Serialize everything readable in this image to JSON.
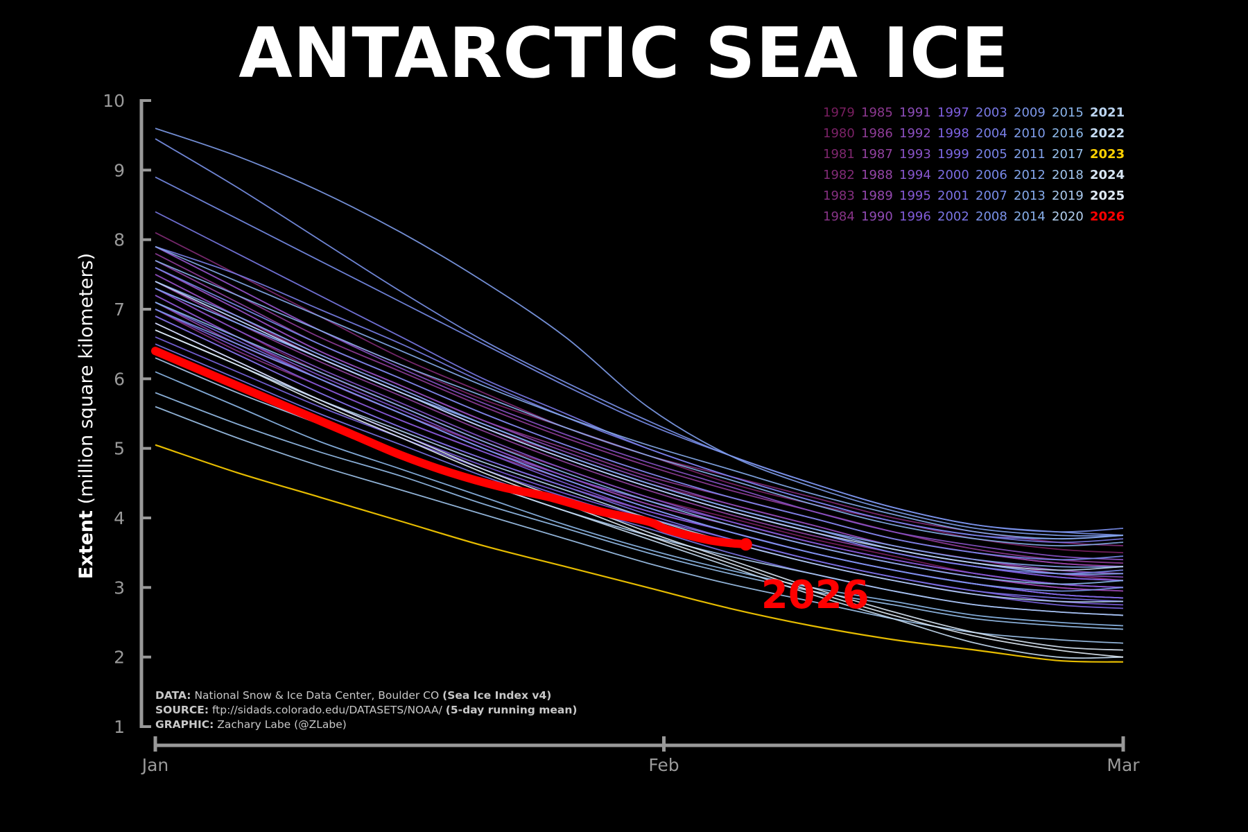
{
  "title": "ANTARCTIC SEA ICE",
  "credits": {
    "data_label": "DATA:",
    "data_text": "National Snow & Ice Data Center, Boulder CO",
    "data_bold": "(Sea Ice Index v4)",
    "source_label": "SOURCE:",
    "source_text": "ftp://sidads.colorado.edu/DATASETS/NOAA/",
    "source_bold": "(5-day running mean)",
    "graphic_label": "GRAPHIC:",
    "graphic_text": "Zachary Labe (@ZLabe)"
  },
  "chart_data": {
    "type": "line",
    "ylabel_bold": "Extent",
    "ylabel_rest": "(million square kilometers)",
    "ylim": [
      1,
      10
    ],
    "yticks": [
      "1",
      "2",
      "3",
      "4",
      "5",
      "6",
      "7",
      "8",
      "9",
      "10"
    ],
    "xticks": [
      "Jan",
      "Feb",
      "Mar"
    ],
    "x_unit": "day of year (Jan 1 = 0, Feb 1 = 31, Mar 1 = 59)",
    "x": [
      0,
      5,
      10,
      15,
      20,
      25,
      30,
      35,
      40,
      45,
      50,
      55,
      59
    ],
    "highlight": {
      "label": "2026",
      "color": "#ff0000",
      "x": [
        0,
        3,
        6,
        9,
        12,
        15,
        18,
        21,
        24,
        27,
        30,
        31,
        32,
        33,
        34,
        35,
        36,
        37,
        38,
        39,
        40,
        41,
        42,
        43,
        44,
        45,
        46
      ],
      "values": [
        6.4,
        6.1,
        5.8,
        5.5,
        5.2,
        4.9,
        4.65,
        4.45,
        4.3,
        4.1,
        3.95,
        3.85,
        3.78,
        3.72,
        3.67,
        3.64,
        3.62,
        null,
        null,
        null,
        null,
        null,
        null,
        null,
        null,
        null,
        null
      ]
    },
    "legend_columns": [
      [
        "1979",
        "1980",
        "1981",
        "1982",
        "1983",
        "1984"
      ],
      [
        "1985",
        "1986",
        "1987",
        "1988",
        "1989",
        "1990"
      ],
      [
        "1991",
        "1992",
        "1993",
        "1994",
        "1995",
        "1996"
      ],
      [
        "1997",
        "1998",
        "1999",
        "2000",
        "2001",
        "2002"
      ],
      [
        "2003",
        "2004",
        "2005",
        "2006",
        "2007",
        "2008"
      ],
      [
        "2009",
        "2010",
        "2011",
        "2012",
        "2013",
        "2014"
      ],
      [
        "2015",
        "2016",
        "2017",
        "2018",
        "2019",
        "2020"
      ],
      [
        "2021",
        "2022",
        "2023",
        "2024",
        "2025",
        "2026"
      ]
    ],
    "special_colors": {
      "2023": "#ffd000",
      "2026": "#ff0000"
    },
    "series": [
      {
        "name": "1979",
        "values": [
          7.3,
          6.7,
          6.1,
          5.6,
          5.1,
          4.7,
          4.3,
          4.0,
          3.7,
          3.45,
          3.2,
          3.05,
          3.0
        ]
      },
      {
        "name": "1980",
        "values": [
          7.9,
          7.3,
          6.7,
          6.2,
          5.7,
          5.3,
          4.9,
          4.5,
          4.2,
          3.95,
          3.7,
          3.55,
          3.5
        ]
      },
      {
        "name": "1981",
        "values": [
          7.5,
          6.9,
          6.3,
          5.8,
          5.3,
          4.9,
          4.5,
          4.2,
          3.9,
          3.6,
          3.4,
          3.2,
          3.1
        ]
      },
      {
        "name": "1982",
        "values": [
          8.1,
          7.5,
          6.9,
          6.3,
          5.8,
          5.3,
          4.9,
          4.6,
          4.3,
          4.0,
          3.8,
          3.65,
          3.6
        ]
      },
      {
        "name": "1983",
        "values": [
          7.2,
          6.6,
          6.0,
          5.5,
          5.05,
          4.6,
          4.2,
          3.9,
          3.6,
          3.35,
          3.15,
          3.0,
          2.95
        ]
      },
      {
        "name": "1984",
        "values": [
          7.0,
          6.4,
          5.9,
          5.4,
          4.95,
          4.55,
          4.15,
          3.8,
          3.5,
          3.25,
          3.05,
          2.9,
          2.85
        ]
      },
      {
        "name": "1985",
        "values": [
          7.6,
          7.0,
          6.4,
          5.9,
          5.4,
          5.0,
          4.6,
          4.3,
          4.0,
          3.7,
          3.5,
          3.35,
          3.3
        ]
      },
      {
        "name": "1986",
        "values": [
          7.8,
          7.2,
          6.6,
          6.1,
          5.6,
          5.15,
          4.75,
          4.4,
          4.1,
          3.8,
          3.55,
          3.4,
          3.35
        ]
      },
      {
        "name": "1987",
        "values": [
          7.4,
          6.8,
          6.25,
          5.75,
          5.25,
          4.8,
          4.4,
          4.05,
          3.75,
          3.5,
          3.3,
          3.15,
          3.1
        ]
      },
      {
        "name": "1988",
        "values": [
          7.7,
          7.1,
          6.5,
          6.0,
          5.5,
          5.05,
          4.65,
          4.3,
          4.0,
          3.7,
          3.5,
          3.35,
          3.3
        ]
      },
      {
        "name": "1989",
        "values": [
          7.1,
          6.5,
          6.0,
          5.5,
          5.0,
          4.6,
          4.2,
          3.9,
          3.6,
          3.35,
          3.15,
          3.0,
          2.95
        ]
      },
      {
        "name": "1990",
        "values": [
          6.9,
          6.35,
          5.8,
          5.3,
          4.85,
          4.45,
          4.1,
          3.8,
          3.5,
          3.25,
          3.05,
          2.9,
          2.85
        ]
      },
      {
        "name": "1991",
        "values": [
          7.6,
          7.0,
          6.4,
          5.9,
          5.4,
          4.95,
          4.55,
          4.2,
          3.9,
          3.6,
          3.4,
          3.25,
          3.2
        ]
      },
      {
        "name": "1992",
        "values": [
          7.5,
          6.9,
          6.35,
          5.85,
          5.35,
          4.9,
          4.5,
          4.15,
          3.85,
          3.55,
          3.35,
          3.2,
          3.15
        ]
      },
      {
        "name": "1993",
        "values": [
          7.9,
          7.3,
          6.7,
          6.15,
          5.65,
          5.2,
          4.8,
          4.45,
          4.1,
          3.8,
          3.6,
          3.45,
          3.4
        ]
      },
      {
        "name": "1994",
        "values": [
          7.3,
          6.7,
          6.15,
          5.65,
          5.15,
          4.7,
          4.3,
          3.95,
          3.65,
          3.4,
          3.2,
          3.05,
          3.0
        ]
      },
      {
        "name": "1995",
        "values": [
          7.2,
          6.6,
          6.05,
          5.55,
          5.05,
          4.6,
          4.25,
          3.95,
          3.65,
          3.4,
          3.2,
          3.05,
          3.0
        ]
      },
      {
        "name": "1996",
        "values": [
          7.0,
          6.45,
          5.9,
          5.4,
          4.95,
          4.5,
          4.1,
          3.8,
          3.5,
          3.25,
          3.05,
          2.9,
          2.85
        ]
      },
      {
        "name": "1997",
        "values": [
          6.8,
          6.25,
          5.7,
          5.2,
          4.75,
          4.35,
          4.0,
          3.7,
          3.4,
          3.15,
          2.95,
          2.8,
          2.75
        ]
      },
      {
        "name": "1998",
        "values": [
          7.4,
          6.85,
          6.3,
          5.8,
          5.3,
          4.85,
          4.45,
          4.1,
          3.8,
          3.5,
          3.3,
          3.15,
          3.1
        ]
      },
      {
        "name": "1999",
        "values": [
          6.6,
          6.1,
          5.6,
          5.15,
          4.7,
          4.3,
          3.95,
          3.65,
          3.35,
          3.1,
          2.9,
          2.75,
          2.7
        ]
      },
      {
        "name": "2000",
        "values": [
          7.1,
          6.55,
          6.0,
          5.5,
          5.0,
          4.55,
          4.15,
          3.8,
          3.5,
          3.25,
          3.05,
          2.9,
          2.85
        ]
      },
      {
        "name": "2001",
        "values": [
          6.9,
          6.35,
          5.8,
          5.3,
          4.85,
          4.45,
          4.05,
          3.7,
          3.4,
          3.15,
          2.95,
          2.85,
          2.8
        ]
      },
      {
        "name": "2002",
        "values": [
          6.5,
          6.0,
          5.5,
          5.05,
          4.6,
          4.2,
          3.85,
          3.5,
          3.2,
          2.95,
          2.75,
          2.65,
          2.6
        ]
      },
      {
        "name": "2003",
        "values": [
          8.4,
          7.8,
          7.2,
          6.6,
          6.0,
          5.5,
          5.0,
          4.6,
          4.25,
          3.95,
          3.75,
          3.65,
          3.7
        ]
      },
      {
        "name": "2004",
        "values": [
          7.9,
          7.5,
          7.0,
          6.5,
          5.95,
          5.45,
          5.0,
          4.6,
          4.25,
          3.95,
          3.75,
          3.7,
          3.75
        ]
      },
      {
        "name": "2005",
        "values": [
          7.3,
          6.8,
          6.3,
          5.8,
          5.3,
          4.85,
          4.45,
          4.1,
          3.8,
          3.5,
          3.3,
          3.2,
          3.25
        ]
      },
      {
        "name": "2006",
        "values": [
          7.6,
          7.05,
          6.5,
          6.0,
          5.5,
          5.05,
          4.65,
          4.3,
          4.0,
          3.7,
          3.5,
          3.4,
          3.45
        ]
      },
      {
        "name": "2007",
        "values": [
          8.9,
          8.3,
          7.7,
          7.1,
          6.5,
          5.9,
          5.35,
          4.9,
          4.5,
          4.15,
          3.9,
          3.8,
          3.85
        ]
      },
      {
        "name": "2008",
        "values": [
          9.45,
          8.75,
          8.0,
          7.25,
          6.55,
          5.95,
          5.4,
          4.9,
          4.5,
          4.15,
          3.9,
          3.8,
          3.75
        ]
      },
      {
        "name": "2009",
        "values": [
          7.0,
          6.5,
          6.0,
          5.5,
          5.0,
          4.55,
          4.15,
          3.8,
          3.5,
          3.25,
          3.05,
          2.95,
          3.0
        ]
      },
      {
        "name": "2010",
        "values": [
          9.6,
          9.2,
          8.7,
          8.1,
          7.4,
          6.6,
          5.6,
          4.9,
          4.45,
          4.1,
          3.85,
          3.75,
          3.75
        ]
      },
      {
        "name": "2011",
        "values": [
          7.3,
          6.8,
          6.3,
          5.8,
          5.35,
          4.9,
          4.5,
          4.15,
          3.85,
          3.55,
          3.35,
          3.2,
          3.2
        ]
      },
      {
        "name": "2012",
        "values": [
          7.4,
          6.9,
          6.35,
          5.85,
          5.35,
          4.9,
          4.5,
          4.15,
          3.85,
          3.6,
          3.4,
          3.3,
          3.3
        ]
      },
      {
        "name": "2013",
        "values": [
          7.9,
          7.4,
          6.9,
          6.4,
          5.9,
          5.45,
          5.05,
          4.7,
          4.35,
          4.05,
          3.8,
          3.7,
          3.75
        ]
      },
      {
        "name": "2014",
        "values": [
          7.7,
          7.2,
          6.7,
          6.2,
          5.75,
          5.3,
          4.9,
          4.55,
          4.2,
          3.9,
          3.7,
          3.6,
          3.65
        ]
      },
      {
        "name": "2015",
        "values": [
          7.1,
          6.6,
          6.1,
          5.6,
          5.1,
          4.65,
          4.25,
          3.9,
          3.6,
          3.35,
          3.15,
          3.05,
          3.1
        ]
      },
      {
        "name": "2016",
        "values": [
          6.1,
          5.6,
          5.1,
          4.7,
          4.3,
          3.9,
          3.55,
          3.25,
          3.0,
          2.8,
          2.6,
          2.5,
          2.45
        ]
      },
      {
        "name": "2017",
        "values": [
          5.8,
          5.35,
          4.95,
          4.6,
          4.2,
          3.85,
          3.5,
          3.2,
          2.95,
          2.75,
          2.55,
          2.45,
          2.4
        ]
      },
      {
        "name": "2018",
        "values": [
          5.6,
          5.15,
          4.75,
          4.4,
          4.05,
          3.7,
          3.35,
          3.05,
          2.8,
          2.55,
          2.35,
          2.25,
          2.2
        ]
      },
      {
        "name": "2019",
        "values": [
          6.3,
          5.8,
          5.35,
          4.9,
          4.5,
          4.1,
          3.75,
          3.45,
          3.2,
          2.95,
          2.75,
          2.65,
          2.6
        ]
      },
      {
        "name": "2020",
        "values": [
          6.7,
          6.2,
          5.7,
          5.25,
          4.8,
          4.4,
          4.0,
          3.65,
          3.35,
          3.1,
          2.9,
          2.8,
          2.8
        ]
      },
      {
        "name": "2021",
        "values": [
          7.4,
          6.85,
          6.3,
          5.8,
          5.3,
          4.85,
          4.45,
          4.1,
          3.8,
          3.55,
          3.35,
          3.25,
          3.3
        ]
      },
      {
        "name": "2022",
        "values": [
          6.4,
          5.9,
          5.4,
          4.95,
          4.5,
          4.1,
          3.7,
          3.3,
          2.9,
          2.55,
          2.2,
          2.0,
          2.0
        ]
      },
      {
        "name": "2023",
        "values": [
          5.05,
          4.65,
          4.3,
          3.95,
          3.6,
          3.3,
          3.0,
          2.7,
          2.45,
          2.25,
          2.1,
          1.95,
          1.93
        ]
      },
      {
        "name": "2024",
        "values": [
          6.8,
          6.25,
          5.7,
          5.2,
          4.7,
          4.25,
          3.8,
          3.4,
          3.0,
          2.65,
          2.35,
          2.15,
          2.1
        ]
      },
      {
        "name": "2025",
        "values": [
          6.7,
          6.2,
          5.65,
          5.15,
          4.65,
          4.2,
          3.75,
          3.35,
          2.95,
          2.6,
          2.3,
          2.1,
          2.0
        ]
      }
    ]
  }
}
